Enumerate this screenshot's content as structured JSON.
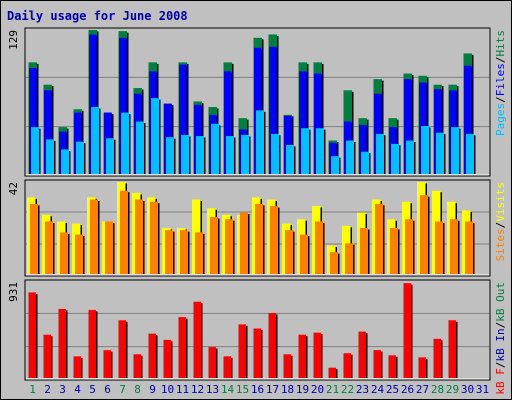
{
  "title": "Daily usage for June 2008",
  "colors": {
    "title": "#0000aa",
    "hits": "#008040",
    "files": "#0000ff",
    "pages": "#00c0ff",
    "visits": "#ffff00",
    "sites": "#ff8000",
    "kbin": "#0000aa",
    "kbout": "#008040",
    "kbf": "#ff0000",
    "weekend": "#008040",
    "weekday": "#0000aa"
  },
  "panels": {
    "top": {
      "ymax_label": "129",
      "legend": [
        {
          "text": "Pages",
          "color": "#00c0ff"
        },
        {
          "text": "/",
          "color": "#000000"
        },
        {
          "text": "Files",
          "color": "#0000ff"
        },
        {
          "text": "/",
          "color": "#000000"
        },
        {
          "text": "Hits",
          "color": "#008040"
        }
      ]
    },
    "middle": {
      "ymax_label": "42",
      "legend": [
        {
          "text": "Sites",
          "color": "#ff8000"
        },
        {
          "text": "/",
          "color": "#000000"
        },
        {
          "text": "Visits",
          "color": "#ffff00"
        }
      ]
    },
    "bottom": {
      "ymax_label": "931",
      "legend": [
        {
          "text": "kB F",
          "color": "#ff0000"
        },
        {
          "text": "/",
          "color": "#000000"
        },
        {
          "text": "kB In",
          "color": "#0000aa"
        },
        {
          "text": "/",
          "color": "#000000"
        },
        {
          "text": "kB Out",
          "color": "#008040"
        }
      ]
    }
  },
  "chart_data": {
    "type": "bar",
    "title": "Daily usage for June 2008",
    "categories": [
      "1",
      "2",
      "3",
      "4",
      "5",
      "6",
      "7",
      "8",
      "9",
      "10",
      "11",
      "12",
      "13",
      "14",
      "15",
      "16",
      "17",
      "18",
      "19",
      "20",
      "21",
      "22",
      "23",
      "24",
      "25",
      "26",
      "27",
      "28",
      "29",
      "30",
      "31"
    ],
    "weekend_days": [
      1,
      7,
      8,
      14,
      15,
      21,
      22,
      28,
      29
    ],
    "panels": [
      {
        "name": "top",
        "ymax": 129,
        "series": [
          {
            "name": "Hits",
            "values": [
              100,
              80,
              42,
              58,
              129,
              55,
              128,
              77,
              100,
              63,
              100,
              65,
              60,
              100,
              50,
              122,
              125,
              53,
              100,
              100,
              30,
              75,
              50,
              85,
              50,
              90,
              88,
              80,
              80,
              108,
              0
            ]
          },
          {
            "name": "Files",
            "values": [
              95,
              75,
              38,
              55,
              125,
              55,
              122,
              72,
              92,
              63,
              98,
              62,
              53,
              92,
              40,
              113,
              114,
              52,
              92,
              90,
              28,
              47,
              44,
              72,
              42,
              85,
              82,
              76,
              75,
              97,
              0
            ]
          },
          {
            "name": "Pages",
            "values": [
              42,
              31,
              22,
              29,
              60,
              32,
              55,
              47,
              68,
              33,
              35,
              34,
              45,
              34,
              35,
              57,
              36,
              26,
              41,
              41,
              16,
              30,
              20,
              36,
              27,
              30,
              43,
              37,
              42,
              36,
              0
            ]
          }
        ]
      },
      {
        "name": "middle",
        "ymax": 42,
        "series": [
          {
            "name": "Visits",
            "values": [
              35,
              27,
              24,
              23,
              35,
              24,
              42,
              37,
              35,
              21,
              21,
              34,
              30,
              27,
              27,
              35,
              34,
              23,
              25,
              31,
              13,
              22,
              28,
              34,
              25,
              33,
              42,
              38,
              33,
              29,
              0
            ]
          },
          {
            "name": "Sites",
            "values": [
              32,
              24,
              19,
              18,
              34,
              24,
              38,
              34,
              33,
              20,
              20,
              19,
              26,
              25,
              28,
              32,
              31,
              20,
              18,
              24,
              10,
              14,
              21,
              32,
              21,
              25,
              36,
              24,
              25,
              24,
              0
            ]
          }
        ]
      },
      {
        "name": "bottom",
        "ymax": 931,
        "series": [
          {
            "name": "kB F",
            "values": [
              830,
              420,
              670,
              210,
              660,
              270,
              560,
              230,
              430,
              370,
              590,
              740,
              300,
              210,
              520,
              480,
              630,
              230,
              420,
              440,
              100,
              240,
              450,
              270,
              220,
              920,
              200,
              380,
              560,
              0,
              0
            ]
          }
        ]
      }
    ]
  }
}
